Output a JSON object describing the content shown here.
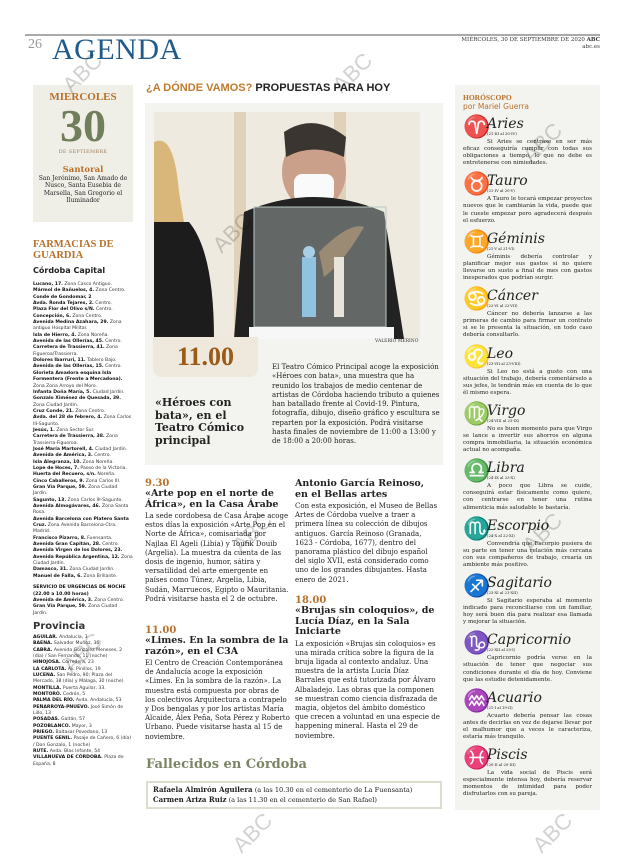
{
  "header": {
    "page_number": "26",
    "section": "AGENDA",
    "date": "MIÉRCOLES, 30 DE SEPTIEMBRE DE 2020",
    "brand": "ABC",
    "site": "abc.es"
  },
  "date_box": {
    "weekday": "MIERCOLES",
    "day": "30",
    "month": "DE SEPTIEMBRE",
    "santoral_title": "Santoral",
    "santoral": "San Jerónimo, San Amado de Nusco, Santa Eusebia de Marsella, San Gregorio el Iluminador"
  },
  "pharmacies": {
    "title": "FARMACIAS DE GUARDIA",
    "capital_title": "Córdoba Capital",
    "capital": [
      {
        "n": "Lucano, 17.",
        "d": "Zona Casco Antiguo."
      },
      {
        "n": "Mármol de Bañuelos, 4.",
        "d": "Zona Centro."
      },
      {
        "n": "Conde de Gondomar, 2",
        "d": ""
      },
      {
        "n": "Avda. Ronda Tejares, 2.",
        "d": "Centro."
      },
      {
        "n": "Plaza Flor del Olivo s/N.",
        "d": "Centro."
      },
      {
        "n": "Concepción, 6.",
        "d": "Zona Centro."
      },
      {
        "n": "Avenida Medina Azahara, 29.",
        "d": "Zona antiguo Hospital Militar."
      },
      {
        "n": "Isla de Hierro, 4.",
        "d": "Zona Noreña."
      },
      {
        "n": "Avenida de las Ollerías, 45.",
        "d": "Centro."
      },
      {
        "n": "Carretera de Trassierra, 41.",
        "d": "Zona Figueroa/Trassierra."
      },
      {
        "n": "Dolores Ibarruri, 11.",
        "d": "Tablero Bajo."
      },
      {
        "n": "Avenida de las Ollerías, 15.",
        "d": "Centro."
      },
      {
        "n": "Glorieta Amadora esquina Isla Formentera (Frente a Mercadona).",
        "d": "Zona Zona Arroyo del Moro."
      },
      {
        "n": "Infanta Doña María, 5.",
        "d": "Ciudad Jardín."
      },
      {
        "n": "Gonzalo Ximénez de Quesada, 39.",
        "d": "Zona Ciudad Jardín."
      },
      {
        "n": "Cruz Conde, 21.",
        "d": "Zona Centro."
      },
      {
        "n": "Avda. del 28 de febrero, 4.",
        "d": "Zona Carlos III-Sagunto."
      },
      {
        "n": "Jesús, 1.",
        "d": "Zona Sector Sur."
      },
      {
        "n": "Carretera de Trassierra, 38.",
        "d": "Zona Trassierra-Figueroa."
      },
      {
        "n": "José María Martorell, 4.",
        "d": "Ciudad Jardín."
      },
      {
        "n": "Avenida de América, 3.",
        "d": "Centro."
      },
      {
        "n": "Isla Alegranza, 10.",
        "d": "Zona Noreña."
      },
      {
        "n": "Lope de Hoces, 7.",
        "d": "Paseo de la Victoria."
      },
      {
        "n": "Huerta del Recuero, s/n.",
        "d": "Noreña."
      },
      {
        "n": "Cinco Caballeros, 9.",
        "d": "Zona Carlos III."
      },
      {
        "n": "Gran Vía Parque, 59.",
        "d": "Zona Ciudad Jardín."
      },
      {
        "n": "Sagunto, 13.",
        "d": "Zona Carlos III-Sagunto."
      },
      {
        "n": "Avenida Almogávares, 46.",
        "d": "Zona Santa Rosa."
      },
      {
        "n": "Avenida Barcelona con Platero Santa Cruz.",
        "d": "Zona Avenida Barcelona-Ctra. Madrid."
      },
      {
        "n": "Francisco Pizarro, 8.",
        "d": "Fuensanta."
      },
      {
        "n": "Avenida Gran Capitán, 28.",
        "d": "Centro."
      },
      {
        "n": "Avenida Virgen de los Dolores, 23.",
        "d": ""
      },
      {
        "n": "Avenida República Argentina, 12.",
        "d": "Zona Ciudad Jardín."
      },
      {
        "n": "Damasco, 31.",
        "d": "Zona Ciudad Jardín."
      },
      {
        "n": "Manuel de Falla, 6.",
        "d": "Zona Brillante."
      }
    ],
    "urgent_title": "SERVICIO DE URGENCIAS DE NOCHE (22.00 a 10.00 horas)",
    "urgent": [
      {
        "n": "Avenida de América, 3.",
        "d": "Zona Centro."
      },
      {
        "n": "Gran Vía Parque, 59.",
        "d": "Zona Ciudad Jardín."
      }
    ],
    "province_title": "Provincia",
    "province": [
      {
        "n": "AGUILAR.",
        "d": "Andalucía, 3"
      },
      {
        "n": "BAENA.",
        "d": "Salvador Muñoz, 36"
      },
      {
        "n": "CABRA.",
        "d": "Avenida González Meneses, 2 (día) / San Fernando, 11 (noche)"
      },
      {
        "n": "HINOJOSA.",
        "d": "Corredera, 23"
      },
      {
        "n": "LA CARLOTA.",
        "d": "Av. Pinillos, 19"
      },
      {
        "n": "LUCENA.",
        "d": "San Pedro, 90; Plaza del Mercado, 38 (día) y Málaga, 30 (noche)"
      },
      {
        "n": "MONTILLA.",
        "d": "Puerta Aguilar, 33."
      },
      {
        "n": "MONTORO.",
        "d": "Cedrón, 5"
      },
      {
        "n": "PALMA DEL RÍO.",
        "d": "Avda. Andalucía, 53"
      },
      {
        "n": "PEÑARROYA-PNUEVO.",
        "d": "José Simón de Lillo, 13"
      },
      {
        "n": "POSADAS.",
        "d": "Gaitán, 57"
      },
      {
        "n": "POZOBLANCO.",
        "d": "Mayor, 3"
      },
      {
        "n": "PRIEGO.",
        "d": "Baltasar Povedano, 13"
      },
      {
        "n": "PUENTE GENIL.",
        "d": "Pasaje de Cañero, 6 (día) / Don Gonzalo, 1 (noche)"
      },
      {
        "n": "RUTE.",
        "d": "Avda. Blas Infante, 54"
      },
      {
        "n": "VILLANUEVA DE CÓRDOBA.",
        "d": "Plaza de España, 8"
      }
    ]
  },
  "kicker": {
    "q": "¿A DÓNDE VAMOS?",
    "rest": "PROPUESTAS PARA HOY"
  },
  "feature": {
    "photo_credit": "VALERIO MERINO",
    "time": "11.00",
    "headline": "«Héroes con bata», en el Teatro Cómico principal",
    "body": "El Teatro Cómico Principal acoge la exposición «Héroes con bata», una muestra que ha reunido los trabajos de medio centenar de artistas de Córdoba haciendo tributo a quienes han batallado frente al Covid-19. Pintura, fotografía, dibujo, diseño gráfico y escultura se reparten por la exposición. Podrá visitarse hasta finales de noviembre de 11:00 a 13:00 y de 18:00 a 20:00 horas."
  },
  "events": [
    {
      "time": "9.30",
      "headline": "«Arte pop en el norte de África», en la Casa Árabe",
      "body": "La sede cordobesa de Casa Árabe acoge estos días la exposición «Arte Pop en el Norte de África», comisariada por Najlaa El Ageli (Libia) y Toufik Douib (Argelia). La muestra da cuenta de las dosis de ingenio, humor, sátira y versatilidad del arte emergente en países como Túnez, Argelia, Libia, Sudán, Marruecos, Egipto o Mauritania. Podrá visitarse hasta el 2 de octubre."
    },
    {
      "time": "11.00",
      "headline": "«Limes. En la sombra de la razón», en el C3A",
      "body": "El Centro de Creación Contemporánea de Andalucía acoge la exposición «Limes. En la sombra de la razón». La muestra está compuesta por obras de los colectivos Arquitectura a contrapelo y Dos bengalas y por los artistas María Alcaide, Álex Peña, Sota Pérez y Roberto Urbano. Puede visitarse hasta al 15 de noviembre."
    },
    {
      "time": "",
      "headline": "Antonio García Reinoso, en el Bellas artes",
      "body": "Con esta exposición, el Museo de Bellas Artes de Córdoba vuelve a traer a primera línea su colección de dibujos antiguos. García Reinoso (Granada, 1623 - Córdoba, 1677), dentro del panorama plástico del dibujo español del siglo XVII, está considerado como uno de los grandes dibujantes. Hasta enero de 2021."
    },
    {
      "time": "18.00",
      "headline": "«Brujas sin coloquios», de Lucía Díaz, en la Sala Iniciarte",
      "body": "La exposición «Brujas sin coloquios» es una mirada crítica sobre la figura de la bruja ligada al contexto andaluz. Una muestra de la artista Lucía Díaz Barrales que está tutorizada por Álvaro Albaladejo. Las obras que la componen se muestran como ciencia disfrazada de magia, objetos del ámbito doméstico que crecen a voluntad en una especie de happening mineral. Hasta el 29 de noviembre."
    }
  ],
  "obituaries": {
    "title": "Fallecidos en Córdoba",
    "items": [
      {
        "name": "Rafaela Almirón Aguilera",
        "detail": "(a las 10.30 en el cementerio de La Fuensanta)"
      },
      {
        "name": "Carmen Ariza Ruiz",
        "detail": "(a las 11.30 en el cementerio de San Rafael)"
      }
    ]
  },
  "horoscope": {
    "title": "HORÓSCOPO",
    "byline": "por Mariel Guerra",
    "icon_color": "#4f82c4",
    "signs": [
      {
        "icon": "aries-icon",
        "glyph": "♈",
        "name": "Aries",
        "dates": "(21-III al 20-IV)",
        "text": "Si Aries se centrase en ser más eficaz conseguiría cumplir con todas sus obligaciones a tiempo, lo que no debe es entretenerse con nimiedades."
      },
      {
        "icon": "taurus-icon",
        "glyph": "♉",
        "name": "Tauro",
        "dates": "(21-IV al 20-V)",
        "text": "A Tauro le tocará empezar proyectos nuevos que le cambiarán la vida, puede que le cueste empezar pero agradecerá después el esfuerzo."
      },
      {
        "icon": "gemini-icon",
        "glyph": "♊",
        "name": "Géminis",
        "dates": "(21-V al 21-VI)",
        "text": "Géminis debería controlar y planificar mejor sus gastos si no quiere llevarse un susto a final de mes con gastos inesperados que podrían surgir."
      },
      {
        "icon": "cancer-icon",
        "glyph": "♋",
        "name": "Cáncer",
        "dates": "(22-VI al 22-VII)",
        "text": "Cáncer no debería lanzarse a las primeras de cambio para firmar un contrato si se le presenta la situación, en todo caso debería consultarlo."
      },
      {
        "icon": "leo-icon",
        "glyph": "♌",
        "name": "Leo",
        "dates": "(23-VII al 23-VIII)",
        "text": "Si Leo no está a gusto con una situación del trabajo, debería comentárselo a sus jefes, le tendrán más en cuenta de lo que él mismo espera."
      },
      {
        "icon": "virgo-icon",
        "glyph": "♍",
        "name": "Virgo",
        "dates": "(24-VIII al 23-IX)",
        "text": "No es buen momento para que Virgo se lance a invertir sus ahorros en alguna compra inmobiliaria, la situación económica actual no acompaña."
      },
      {
        "icon": "libra-icon",
        "glyph": "♎",
        "name": "Libra",
        "dates": "(24-IX al 23-X)",
        "text": "A poco que Libra se cuide, conseguirá estar físicamente como quiere, con centrarse en tener una rutina alimenticia más saludable le bastaría."
      },
      {
        "icon": "scorpio-icon",
        "glyph": "♏",
        "name": "Escorpio",
        "dates": "(24-X al 22-XI)",
        "text": "Convendría que Escorpio pusiera de su parte en tener una relación más cercana con sus compañeros de trabajo, crearía un ambiente más positivo."
      },
      {
        "icon": "sagittarius-icon",
        "glyph": "♐",
        "name": "Sagitario",
        "dates": "(23-XI al 21-XII)",
        "text": "Si Sagitario esperaba al momento indicado para reconciliarse con un familiar, hoy será buen día para realizar esa llamada y mejorar la situación."
      },
      {
        "icon": "capricorn-icon",
        "glyph": "♑",
        "name": "Capricornio",
        "dates": "(22-XII al 20-I)",
        "text": "Capricornio podría verse en la situación de tener que negociar sus condiciones durante el día de hoy. Conviene que las estudie detenidamente."
      },
      {
        "icon": "aquarius-icon",
        "glyph": "♒",
        "name": "Acuario",
        "dates": "(21-I al 19-II)",
        "text": "Acuario debería pensar las cosas antes de decirlas en vez de dejarse llevar por el malhumor que a veces le caracteriza, estaría más tranquilo."
      },
      {
        "icon": "pisces-icon",
        "glyph": "♓",
        "name": "Piscis",
        "dates": "(20-II al 20-III)",
        "text": "La vida social de Piscis será especialmente intensa hoy, debería reservar momentos de intimidad para poder disfrutarlos con su pareja."
      }
    ]
  },
  "watermark": "ABC"
}
